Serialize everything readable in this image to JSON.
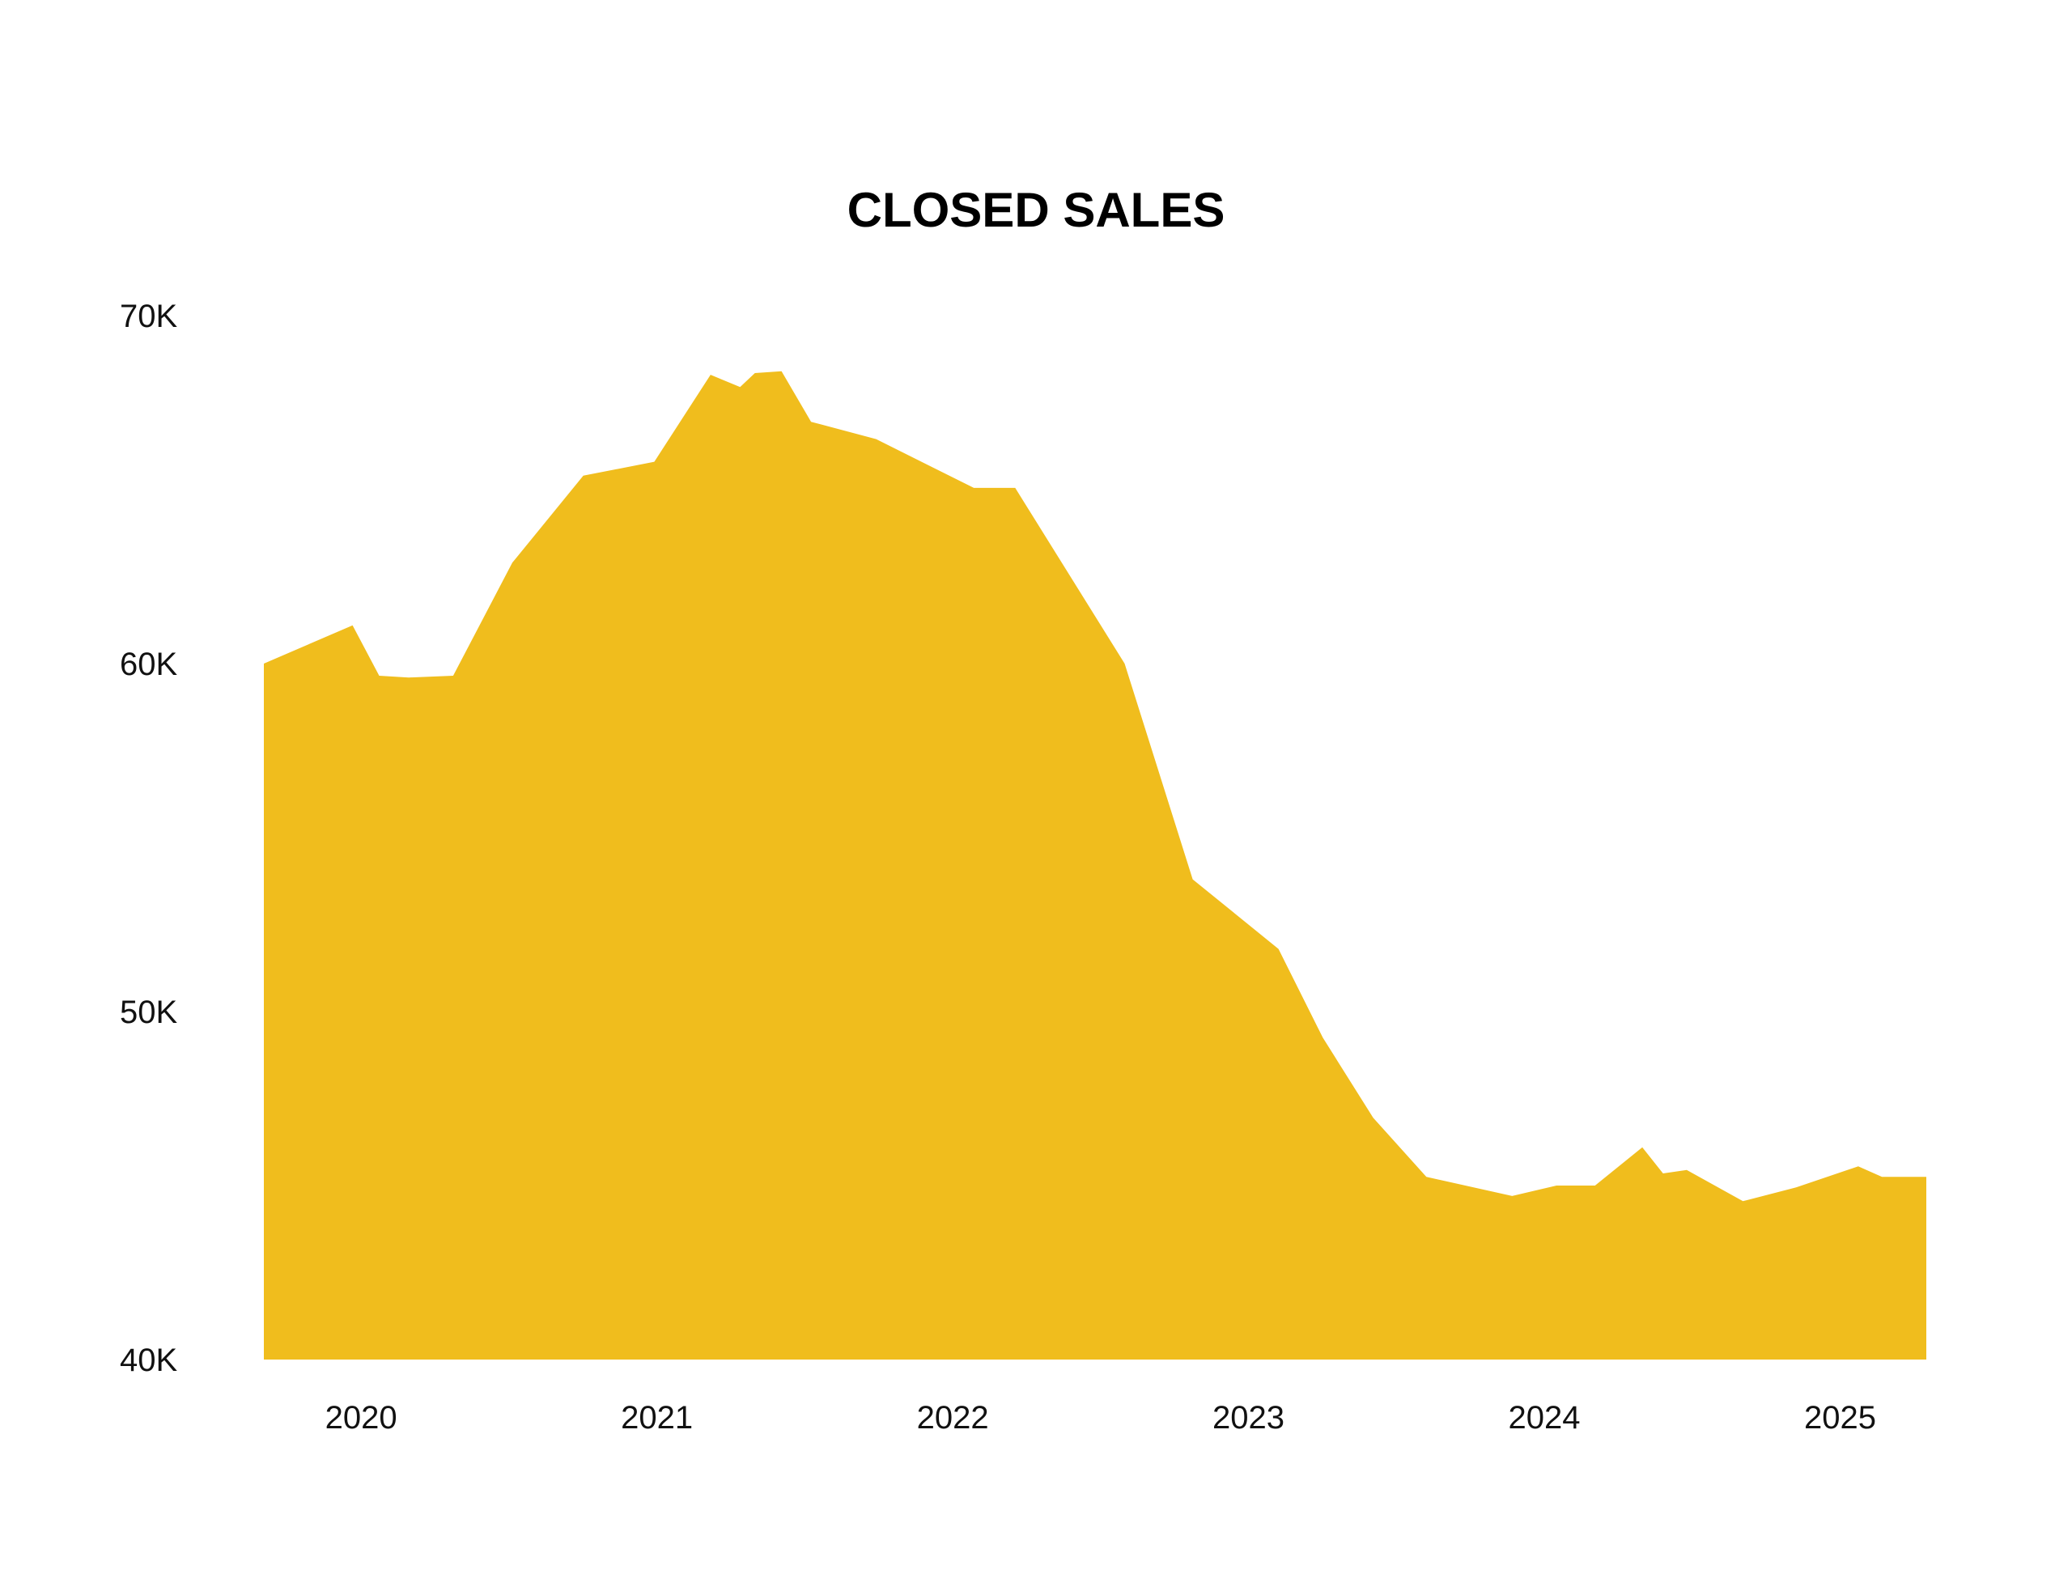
{
  "chart_data": {
    "type": "area",
    "title": "CLOSED SALES",
    "xlabel": "",
    "ylabel": "",
    "ylim": [
      40000,
      70000
    ],
    "yticks": [
      40000,
      50000,
      60000,
      70000
    ],
    "ytick_labels": [
      "40K",
      "50K",
      "60K",
      "70K"
    ],
    "xticks": [
      2020,
      2021,
      2022,
      2023,
      2024,
      2025
    ],
    "xtick_labels": [
      "2020",
      "2021",
      "2022",
      "2023",
      "2024",
      "2025"
    ],
    "xlim": [
      2019.8,
      2025.42
    ],
    "grid": false,
    "legend": "none",
    "colors": {
      "area": "#F0BD1D",
      "background": "#FFFFFF"
    },
    "series": [
      {
        "x": [
          2019.8,
          2020.1,
          2020.19,
          2020.29,
          2020.44,
          2020.64,
          2020.88,
          2021.12,
          2021.31,
          2021.41,
          2021.46,
          2021.55,
          2021.65,
          2021.87,
          2022.2,
          2022.34,
          2022.71,
          2022.94,
          2023.23,
          2023.38,
          2023.55,
          2023.73,
          2024.02,
          2024.17,
          2024.3,
          2024.46,
          2024.53,
          2024.61,
          2024.8,
          2024.98,
          2025.19,
          2025.27,
          2025.42
        ],
        "values": [
          60000,
          61100,
          59650,
          59600,
          59650,
          62900,
          65400,
          65800,
          68300,
          67950,
          68350,
          68400,
          66950,
          66450,
          65050,
          65050,
          60000,
          53800,
          51800,
          49250,
          46950,
          45250,
          44700,
          45000,
          45000,
          46100,
          45350,
          45450,
          44550,
          44950,
          45550,
          45250,
          45250
        ]
      }
    ]
  }
}
